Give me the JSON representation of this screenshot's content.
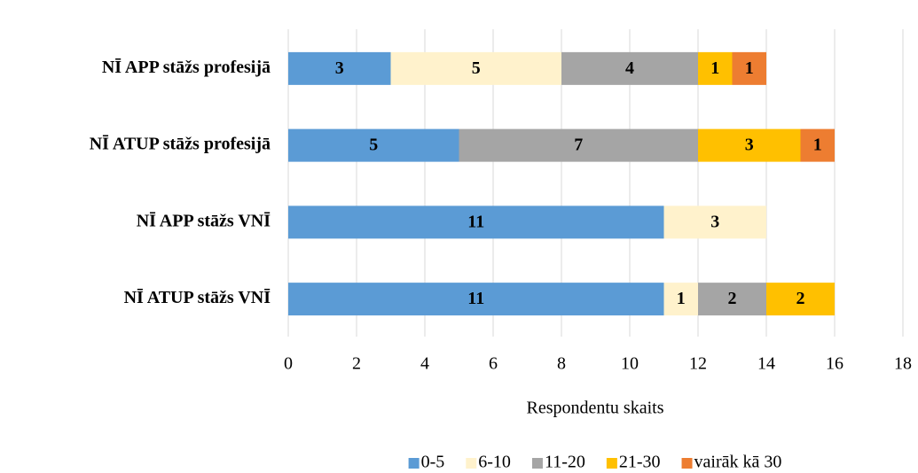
{
  "chart_data": {
    "type": "stacked-barh",
    "categories": [
      "NĪ APP stāžs profesijā",
      "NĪ ATUP stāžs profesijā",
      "NĪ APP stāžs VNĪ",
      "NĪ ATUP stāžs VNĪ"
    ],
    "series": [
      {
        "name": "0-5",
        "color": "#5b9bd5",
        "values": [
          3,
          5,
          11,
          11
        ]
      },
      {
        "name": "6-10",
        "color": "#fff2cc",
        "values": [
          5,
          null,
          3,
          1
        ]
      },
      {
        "name": "11-20",
        "color": "#a5a5a5",
        "values": [
          4,
          7,
          null,
          2
        ]
      },
      {
        "name": "21-30",
        "color": "#ffc000",
        "values": [
          1,
          3,
          null,
          2
        ]
      },
      {
        "name": "vairāk kā 30",
        "color": "#ed7d31",
        "values": [
          1,
          1,
          null,
          null
        ]
      }
    ],
    "xlabel": "Respondentu skaits",
    "xlim": [
      0,
      18
    ],
    "xticks": [
      0,
      2,
      4,
      6,
      8,
      10,
      12,
      14,
      16,
      18
    ],
    "grid": true,
    "legend": "bottom"
  }
}
